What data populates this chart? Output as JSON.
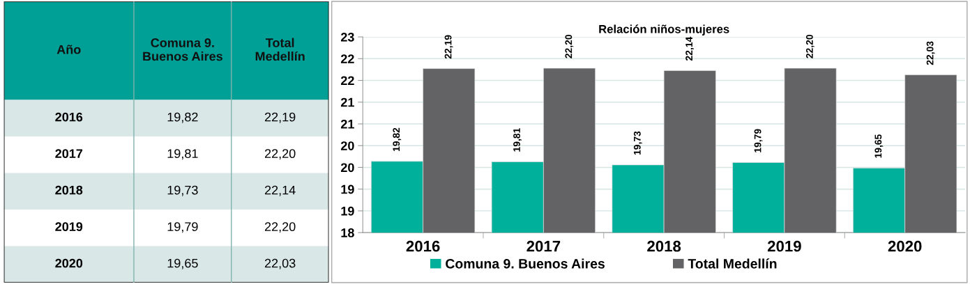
{
  "chart_data": {
    "type": "bar",
    "title": "Relación niños-mujeres",
    "categories": [
      "2016",
      "2017",
      "2018",
      "2019",
      "2020"
    ],
    "series": [
      {
        "name": "Comuna 9. Buenos Aires",
        "color": "#00b09b",
        "values": [
          19.82,
          19.81,
          19.73,
          19.79,
          19.65
        ],
        "value_labels": [
          "19,82",
          "19,81",
          "19,73",
          "19,79",
          "19,65"
        ]
      },
      {
        "name": "Total Medellín",
        "color": "#636365",
        "values": [
          22.19,
          22.2,
          22.14,
          22.2,
          22.03
        ],
        "value_labels": [
          "22,19",
          "22,20",
          "22,14",
          "22,20",
          "22,03"
        ]
      }
    ],
    "ylim": [
      18,
      23
    ],
    "yticks": [
      18,
      {
        "value": 18.5556,
        "label": "19"
      },
      {
        "value": 19.1111,
        "label": "19"
      },
      {
        "value": 19.6667,
        "label": "20"
      },
      {
        "value": 20.2222,
        "label": "20"
      },
      {
        "value": 20.7778,
        "label": "21"
      },
      {
        "value": 21.3333,
        "label": "21"
      },
      {
        "value": 21.8889,
        "label": "22"
      },
      {
        "value": 22.4444,
        "label": "22"
      },
      23
    ],
    "grid": "y",
    "legend": "bottom",
    "annotations": [
      "Año"
    ]
  }
}
